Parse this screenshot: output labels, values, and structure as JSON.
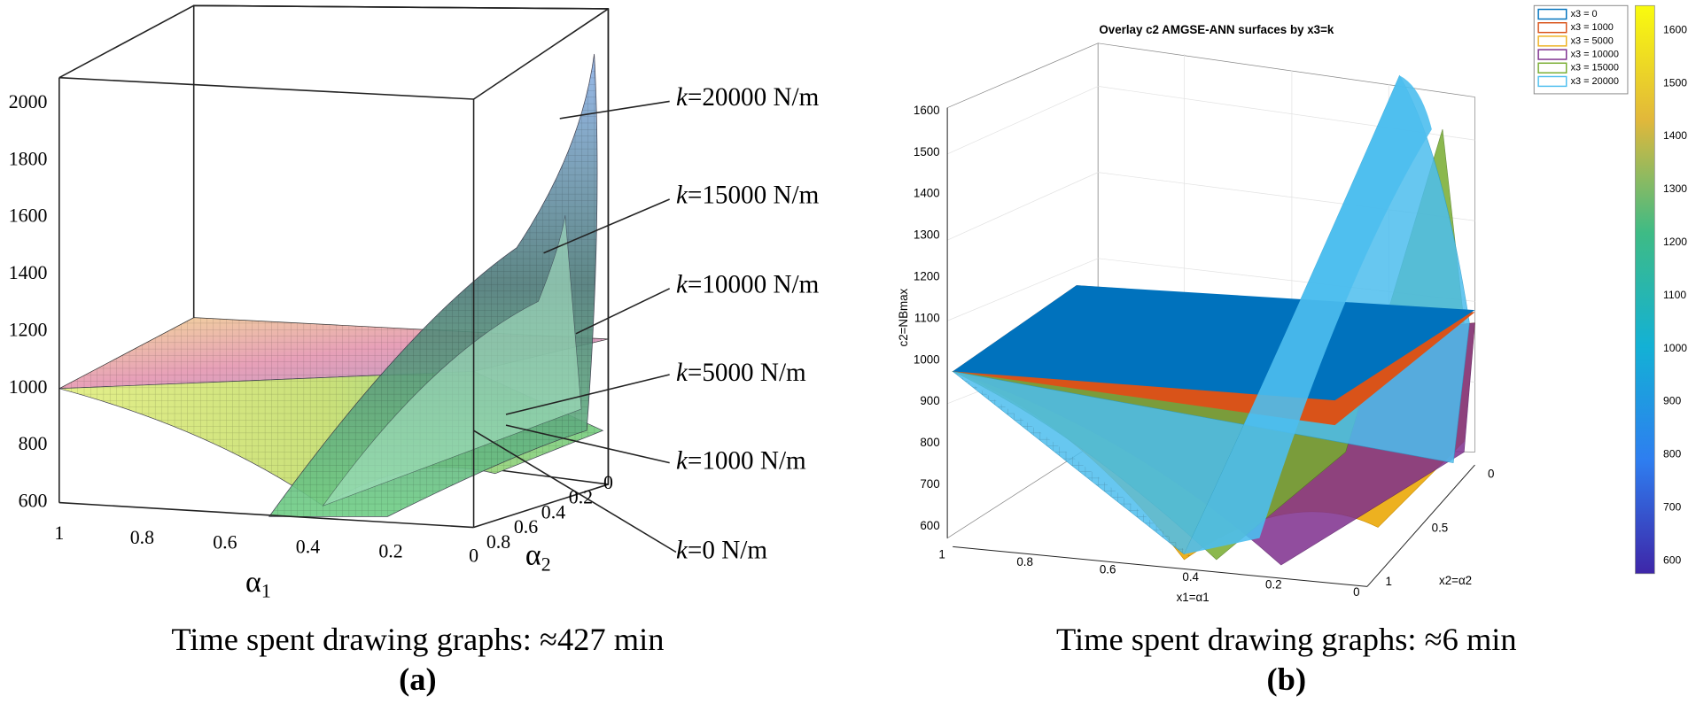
{
  "panel_a": {
    "z_ticks": [
      "2000",
      "1800",
      "1600",
      "1400",
      "1200",
      "1000",
      "800",
      "600"
    ],
    "alpha1_ticks": [
      "1",
      "0.8",
      "0.6",
      "0.4",
      "0.2",
      "0"
    ],
    "alpha2_ticks": [
      "0.8",
      "0.6",
      "0.4",
      "0.2",
      "0"
    ],
    "alpha1_label": {
      "symbol": "α",
      "subscript": "1"
    },
    "alpha2_label": {
      "symbol": "α",
      "subscript": "2"
    },
    "annotations": [
      {
        "var": "k",
        "rest": "=20000 N/m"
      },
      {
        "var": "k",
        "rest": "=15000 N/m"
      },
      {
        "var": "k",
        "rest": "=10000 N/m"
      },
      {
        "var": "k",
        "rest": "=5000 N/m"
      },
      {
        "var": "k",
        "rest": "=1000 N/m"
      },
      {
        "var": "k",
        "rest": "=0 N/m"
      }
    ],
    "caption": "Time spent drawing graphs: ≈427 min",
    "label": "(a)"
  },
  "panel_b": {
    "title": "Overlay c2 AMGSE-ANN surfaces by x3=k",
    "z_label": "c2=NBmax",
    "x1_label": "x1=α1",
    "x2_label": "x2=α2",
    "z_ticks": [
      "1600",
      "1500",
      "1400",
      "1300",
      "1200",
      "1100",
      "1000",
      "900",
      "800",
      "700",
      "600"
    ],
    "x1_ticks": [
      "1",
      "0.8",
      "0.6",
      "0.4",
      "0.2",
      "0"
    ],
    "x2_ticks": [
      "0",
      "0.5",
      "1"
    ],
    "legend": [
      {
        "name": "x3 = 0",
        "color": "#0072bd"
      },
      {
        "name": "x3 = 1000",
        "color": "#d95319"
      },
      {
        "name": "x3 = 5000",
        "color": "#edb120"
      },
      {
        "name": "x3 = 10000",
        "color": "#7e2f8e"
      },
      {
        "name": "x3 = 15000",
        "color": "#77ac30"
      },
      {
        "name": "x3 = 20000",
        "color": "#4dbeee"
      }
    ],
    "colorbar_ticks": [
      "1600",
      "1500",
      "1400",
      "1300",
      "1200",
      "1100",
      "1000",
      "900",
      "800",
      "700",
      "600"
    ],
    "caption": "Time spent drawing graphs: ≈6 min",
    "label": "(b)"
  }
}
